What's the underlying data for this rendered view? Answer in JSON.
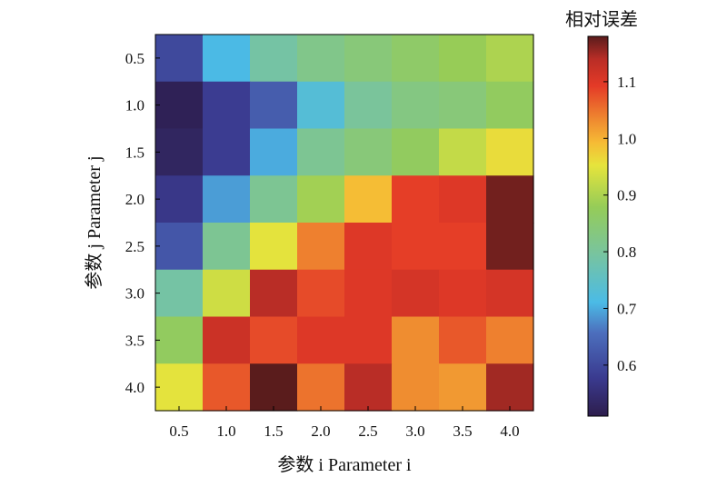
{
  "chart_data": {
    "type": "heatmap",
    "xlabel": "参数 i Parameter i",
    "ylabel": "参数 j Parameter j",
    "x_categories": [
      "0.5",
      "1.0",
      "1.5",
      "2.0",
      "2.5",
      "3.0",
      "3.5",
      "4.0"
    ],
    "y_categories": [
      "0.5",
      "1.0",
      "1.5",
      "2.0",
      "2.5",
      "3.0",
      "3.5",
      "4.0"
    ],
    "values": [
      [
        0.6,
        0.71,
        0.79,
        0.82,
        0.84,
        0.86,
        0.88,
        0.9
      ],
      [
        0.52,
        0.58,
        0.63,
        0.73,
        0.8,
        0.83,
        0.84,
        0.87
      ],
      [
        0.53,
        0.58,
        0.7,
        0.81,
        0.84,
        0.87,
        0.92,
        0.96
      ],
      [
        0.57,
        0.69,
        0.81,
        0.89,
        0.99,
        1.09,
        1.1,
        1.17
      ],
      [
        0.62,
        0.81,
        0.95,
        1.04,
        1.1,
        1.09,
        1.09,
        1.17
      ],
      [
        0.79,
        0.93,
        1.14,
        1.08,
        1.1,
        1.11,
        1.1,
        1.11
      ],
      [
        0.87,
        1.12,
        1.08,
        1.1,
        1.1,
        1.03,
        1.07,
        1.04
      ],
      [
        0.95,
        1.07,
        1.18,
        1.05,
        1.14,
        1.03,
        1.02,
        1.15
      ]
    ],
    "colorbar": {
      "title": "相对误差",
      "range": [
        0.51,
        1.18
      ],
      "ticks": [
        0.6,
        0.7,
        0.8,
        0.9,
        1.0,
        1.1
      ],
      "tick_labels": [
        "0.6",
        "0.7",
        "0.8",
        "0.9",
        "1.0",
        "1.1"
      ]
    },
    "colormap_stops": [
      [
        0.0,
        "#2d1d4c"
      ],
      [
        0.1,
        "#3a3a8f"
      ],
      [
        0.22,
        "#4c6fbd"
      ],
      [
        0.3,
        "#4bbbe6"
      ],
      [
        0.43,
        "#79c49d"
      ],
      [
        0.55,
        "#95cc58"
      ],
      [
        0.66,
        "#e6e43c"
      ],
      [
        0.72,
        "#f6bb35"
      ],
      [
        0.78,
        "#ef8a30"
      ],
      [
        0.87,
        "#e43a27"
      ],
      [
        0.94,
        "#b92d26"
      ],
      [
        1.0,
        "#5a1c1c"
      ]
    ]
  }
}
